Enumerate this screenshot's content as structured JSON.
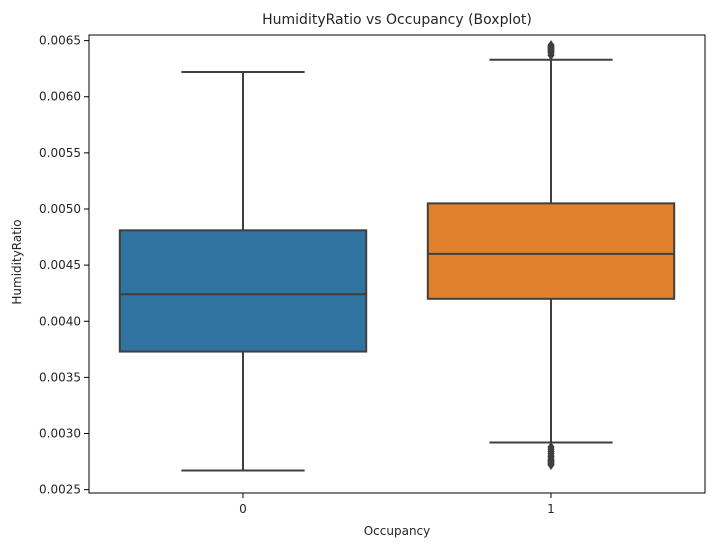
{
  "chart_data": {
    "type": "boxplot",
    "title": "HumidityRatio vs Occupancy (Boxplot)",
    "xlabel": "Occupancy",
    "ylabel": "HumidityRatio",
    "ylim": [
      0.00247,
      0.00655
    ],
    "yticks": [
      0.0025,
      0.003,
      0.0035,
      0.004,
      0.0045,
      0.005,
      0.0055,
      0.006,
      0.0065
    ],
    "ytick_labels": [
      "0.0025",
      "0.0030",
      "0.0035",
      "0.0040",
      "0.0045",
      "0.0050",
      "0.0055",
      "0.0060",
      "0.0065"
    ],
    "categories": [
      "0",
      "1"
    ],
    "grid": false,
    "series": [
      {
        "category": "0",
        "color": "#3274a1",
        "whisker_low": 0.00267,
        "q1": 0.00373,
        "median": 0.00424,
        "q3": 0.00481,
        "whisker_high": 0.00622,
        "outliers_low": [],
        "outliers_high": []
      },
      {
        "category": "1",
        "color": "#e1812c",
        "whisker_low": 0.00292,
        "q1": 0.0042,
        "median": 0.0046,
        "q3": 0.00505,
        "whisker_high": 0.00633,
        "outliers_low": [
          0.00288,
          0.00286,
          0.00284,
          0.00282,
          0.0028,
          0.00279,
          0.00277,
          0.00276,
          0.00275,
          0.00274,
          0.00273,
          0.00272
        ],
        "outliers_high": [
          0.00637,
          0.00639,
          0.0064,
          0.00641,
          0.00642,
          0.00643,
          0.00644,
          0.00645,
          0.00646
        ]
      }
    ]
  }
}
